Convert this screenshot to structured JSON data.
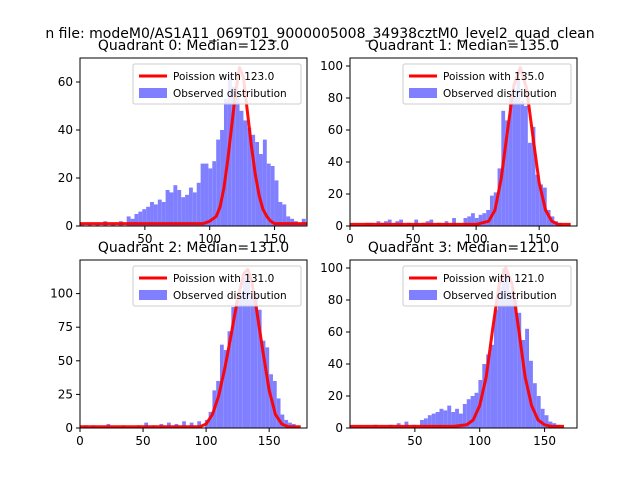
{
  "figure_title": "n file: modeM0/AS1A11_069T01_9000005008_34938cztM0_level2_quad_clean",
  "colors": {
    "model_line": "#ff0000",
    "observed_bars": "#7f7fff",
    "axes": "#000000",
    "background": "#ffffff"
  },
  "chart_data": [
    {
      "type": "bar",
      "title": "Quadrant 0: Median=123.0",
      "xlim": [
        0,
        175
      ],
      "ylim": [
        0,
        70
      ],
      "xticks": [
        50,
        100,
        150
      ],
      "yticks": [
        0,
        20,
        40,
        60
      ],
      "legend_position": "top-right",
      "bin_width": 3,
      "series": [
        {
          "name": "Poission with 123.0",
          "kind": "line",
          "x": [
            0,
            20,
            40,
            60,
            70,
            80,
            85,
            90,
            95,
            100,
            105,
            108,
            111,
            114,
            117,
            120,
            123,
            126,
            129,
            132,
            135,
            138,
            141,
            144,
            147,
            150,
            155,
            160,
            165,
            175
          ],
          "y": [
            1,
            1,
            1,
            1,
            1,
            1,
            1,
            1,
            1,
            2,
            4,
            8,
            16,
            28,
            42,
            56,
            66,
            62,
            48,
            34,
            22,
            13,
            7,
            4,
            2,
            1,
            1,
            1,
            1,
            1
          ]
        },
        {
          "name": "Observed distribution",
          "kind": "hist",
          "x": [
            0,
            6,
            12,
            18,
            24,
            30,
            36,
            39,
            42,
            45,
            48,
            51,
            54,
            57,
            60,
            63,
            66,
            69,
            72,
            75,
            78,
            81,
            84,
            87,
            90,
            93,
            96,
            99,
            102,
            105,
            108,
            111,
            114,
            117,
            120,
            123,
            126,
            129,
            132,
            135,
            138,
            141,
            144,
            147,
            150,
            153,
            156,
            159,
            162,
            165,
            168,
            171
          ],
          "y": [
            1,
            1,
            1,
            2,
            1,
            2,
            4,
            3,
            5,
            6,
            7,
            8,
            10,
            9,
            11,
            10,
            15,
            14,
            17,
            15,
            12,
            13,
            16,
            14,
            18,
            26,
            26,
            24,
            27,
            36,
            40,
            53,
            63,
            58,
            56,
            48,
            44,
            41,
            38,
            35,
            30,
            36,
            26,
            25,
            19,
            10,
            9,
            4,
            3,
            2,
            1,
            3
          ]
        }
      ]
    },
    {
      "type": "bar",
      "title": "Quadrant 1: Median=135.0",
      "xlim": [
        0,
        180
      ],
      "ylim": [
        0,
        105
      ],
      "xticks": [
        0,
        50,
        100,
        150
      ],
      "yticks": [
        0,
        20,
        40,
        60,
        80,
        100
      ],
      "legend_position": "top-right",
      "bin_width": 3,
      "series": [
        {
          "name": "Poission with 135.0",
          "kind": "line",
          "x": [
            0,
            40,
            80,
            100,
            110,
            115,
            120,
            125,
            130,
            135,
            140,
            145,
            150,
            155,
            160,
            165,
            170,
            175
          ],
          "y": [
            1,
            1,
            1,
            1,
            3,
            10,
            30,
            60,
            88,
            99,
            86,
            56,
            27,
            10,
            3,
            1,
            1,
            1
          ]
        },
        {
          "name": "Observed distribution",
          "kind": "hist",
          "x": [
            12,
            15,
            21,
            24,
            27,
            30,
            36,
            39,
            45,
            51,
            57,
            60,
            63,
            69,
            75,
            81,
            90,
            93,
            96,
            99,
            102,
            105,
            108,
            111,
            114,
            117,
            120,
            123,
            126,
            129,
            132,
            135,
            138,
            141,
            144,
            147,
            150,
            153,
            156,
            159,
            162,
            165
          ],
          "y": [
            2,
            2,
            3,
            2,
            3,
            4,
            3,
            4,
            2,
            4,
            2,
            3,
            4,
            2,
            3,
            5,
            5,
            6,
            8,
            5,
            7,
            8,
            10,
            19,
            21,
            36,
            72,
            66,
            80,
            85,
            92,
            78,
            75,
            52,
            62,
            32,
            26,
            24,
            10,
            6,
            3,
            2
          ]
        }
      ]
    },
    {
      "type": "bar",
      "title": "Quadrant 2: Median=131.0",
      "xlim": [
        0,
        180
      ],
      "ylim": [
        0,
        125
      ],
      "xticks": [
        0,
        50,
        100,
        150
      ],
      "yticks": [
        0,
        25,
        50,
        75,
        100
      ],
      "legend_position": "top-right",
      "bin_width": 3,
      "series": [
        {
          "name": "Poission with 131.0",
          "kind": "line",
          "x": [
            0,
            40,
            80,
            95,
            100,
            105,
            110,
            115,
            120,
            125,
            130,
            133,
            136,
            140,
            145,
            150,
            155,
            160,
            165,
            175
          ],
          "y": [
            1,
            1,
            1,
            1,
            3,
            10,
            24,
            45,
            70,
            96,
            115,
            118,
            110,
            88,
            57,
            28,
            10,
            3,
            1,
            1
          ]
        },
        {
          "name": "Observed distribution",
          "kind": "hist",
          "x": [
            3,
            9,
            15,
            21,
            27,
            33,
            39,
            45,
            51,
            57,
            63,
            69,
            75,
            81,
            87,
            93,
            99,
            102,
            105,
            108,
            111,
            114,
            117,
            120,
            123,
            126,
            129,
            132,
            135,
            138,
            141,
            144,
            147,
            150,
            153,
            156,
            159,
            162,
            165,
            168
          ],
          "y": [
            2,
            2,
            1,
            3,
            1,
            2,
            1,
            2,
            4,
            2,
            3,
            4,
            3,
            5,
            4,
            5,
            6,
            12,
            28,
            35,
            62,
            58,
            72,
            90,
            95,
            100,
            112,
            115,
            98,
            100,
            88,
            65,
            60,
            40,
            35,
            22,
            10,
            6,
            4,
            3
          ]
        }
      ]
    },
    {
      "type": "bar",
      "title": "Quadrant 3: Median=121.0",
      "xlim": [
        0,
        175
      ],
      "ylim": [
        0,
        105
      ],
      "xticks": [
        50,
        100,
        150
      ],
      "yticks": [
        0,
        20,
        40,
        60,
        80,
        100
      ],
      "legend_position": "top-right",
      "bin_width": 3,
      "series": [
        {
          "name": "Poission with 121.0",
          "kind": "line",
          "x": [
            0,
            40,
            80,
            90,
            95,
            100,
            105,
            110,
            115,
            120,
            125,
            130,
            135,
            140,
            145,
            150,
            155,
            165
          ],
          "y": [
            1,
            1,
            1,
            2,
            5,
            14,
            32,
            62,
            90,
            100,
            90,
            62,
            32,
            14,
            5,
            2,
            1,
            1
          ]
        },
        {
          "name": "Observed distribution",
          "kind": "hist",
          "x": [
            6,
            12,
            18,
            24,
            30,
            36,
            42,
            48,
            54,
            57,
            60,
            63,
            66,
            69,
            72,
            75,
            78,
            81,
            84,
            87,
            90,
            93,
            96,
            99,
            102,
            105,
            108,
            111,
            114,
            117,
            120,
            123,
            126,
            129,
            132,
            135,
            138,
            141,
            144,
            147,
            150,
            153,
            156,
            159,
            162
          ],
          "y": [
            1,
            1,
            2,
            1,
            2,
            3,
            4,
            2,
            5,
            6,
            8,
            9,
            10,
            12,
            11,
            14,
            10,
            12,
            9,
            15,
            18,
            20,
            22,
            30,
            40,
            46,
            52,
            74,
            88,
            100,
            96,
            85,
            80,
            72,
            55,
            62,
            42,
            28,
            20,
            12,
            8,
            4,
            3,
            2,
            1
          ]
        }
      ]
    }
  ]
}
